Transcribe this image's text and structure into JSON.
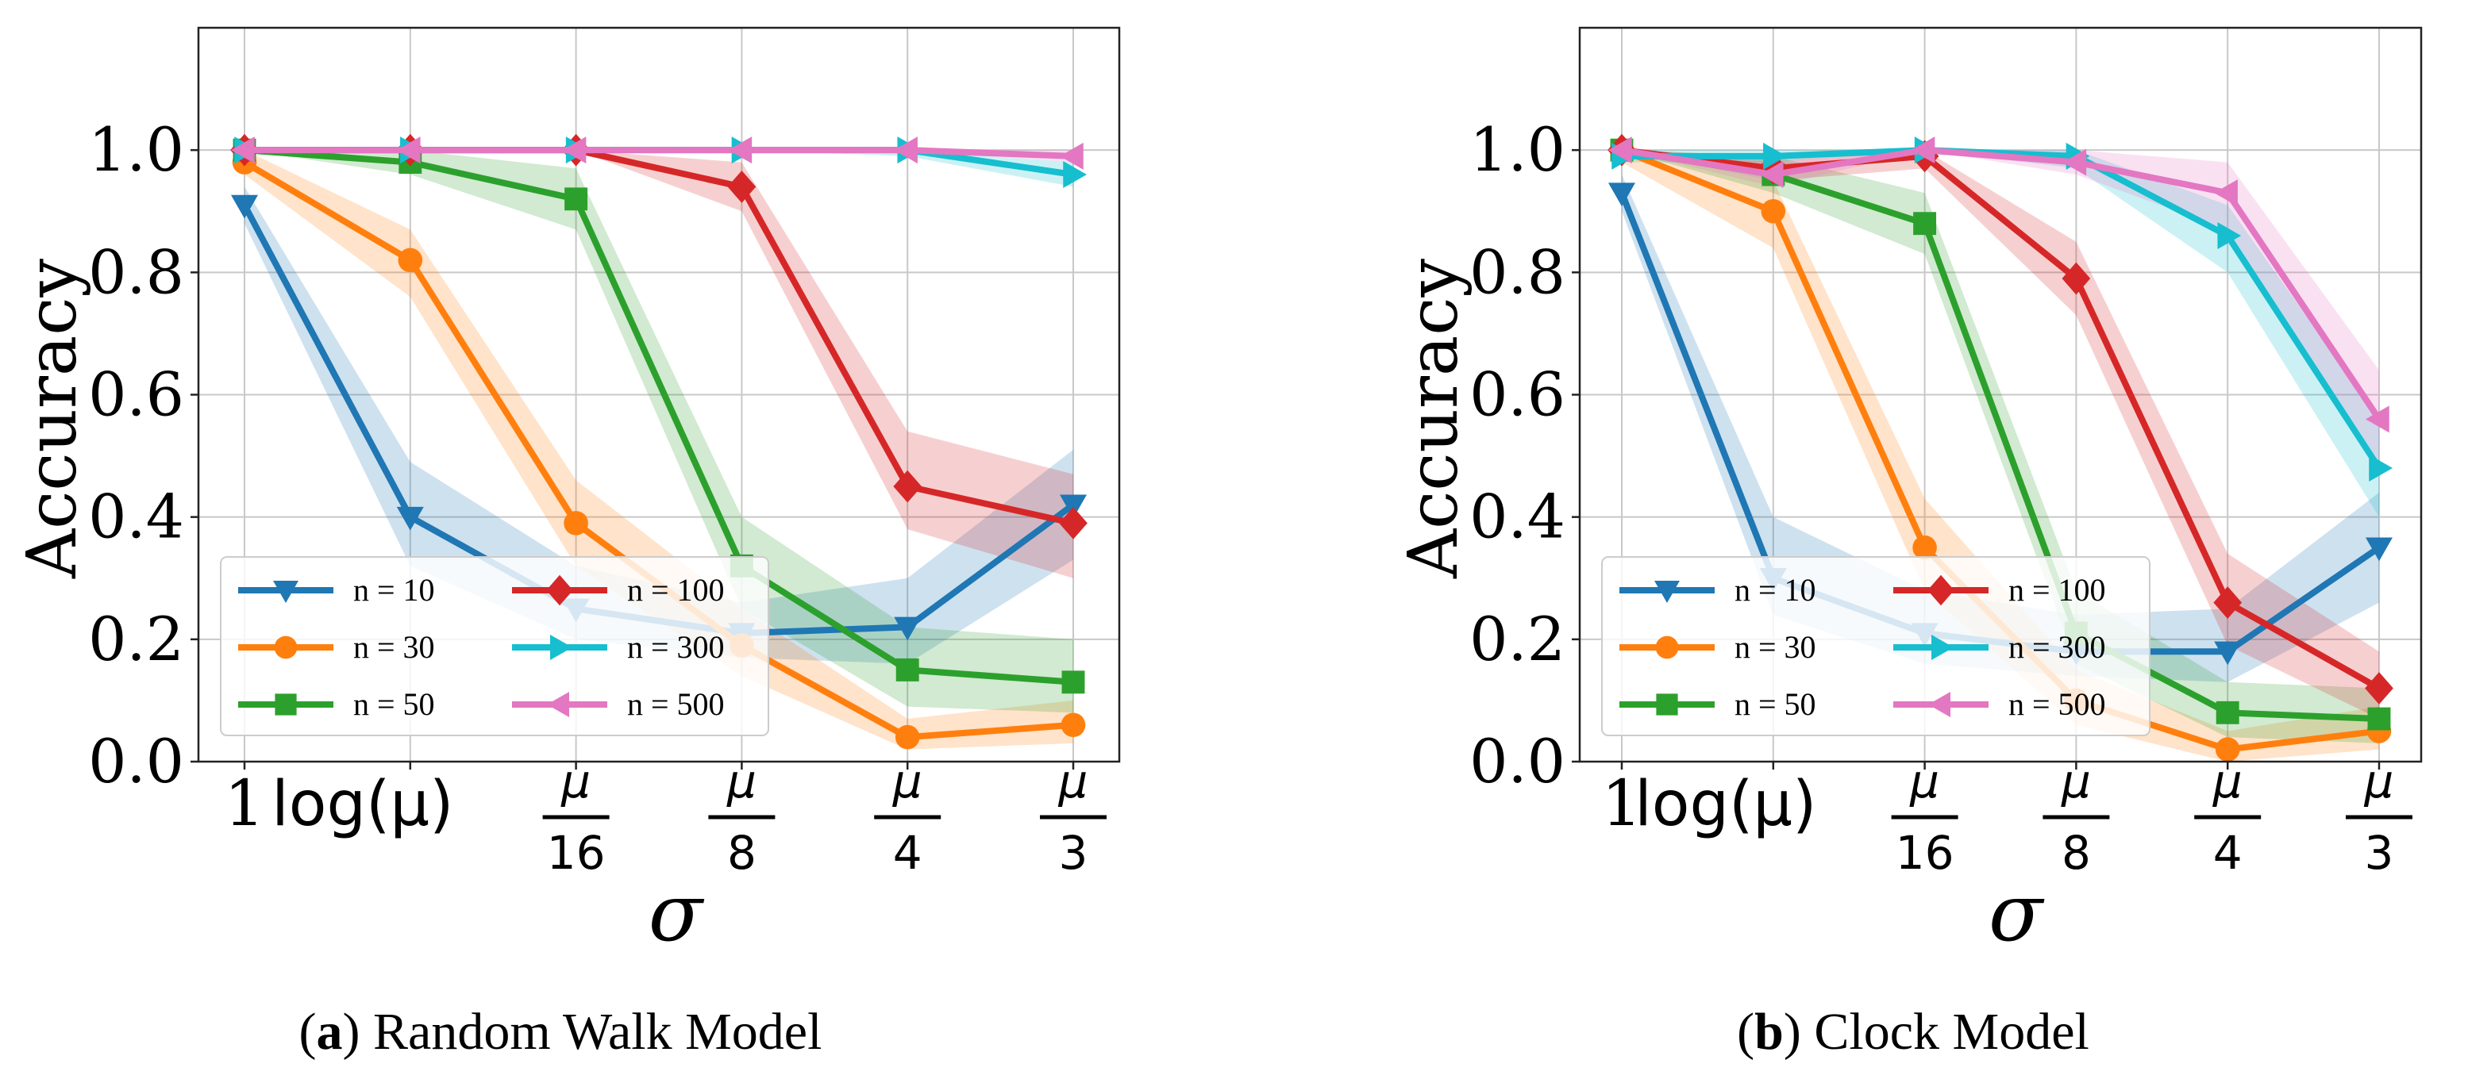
{
  "x_tick_labels": [
    {
      "type": "text",
      "text": "1"
    },
    {
      "type": "text",
      "text": "log(μ)"
    },
    {
      "type": "frac",
      "num": "μ",
      "den": "16"
    },
    {
      "type": "frac",
      "num": "μ",
      "den": "8"
    },
    {
      "type": "frac",
      "num": "μ",
      "den": "4"
    },
    {
      "type": "frac",
      "num": "μ",
      "den": "3"
    }
  ],
  "colors": {
    "n = 10": "#1f77b4",
    "n = 30": "#ff7f0e",
    "n = 50": "#2ca02c",
    "n = 100": "#d62728",
    "n = 300": "#17becf",
    "n = 500": "#e377c2"
  },
  "markers": {
    "n = 10": "triangle-down",
    "n = 30": "circle",
    "n = 50": "square",
    "n = 100": "diamond",
    "n = 300": "triangle-right",
    "n = 500": "triangle-left"
  },
  "chart_data": [
    {
      "type": "line",
      "caption_prefix": "(",
      "caption_letter": "a",
      "caption_suffix": ") ",
      "caption_text": "Random Walk Model",
      "xlabel": "σ",
      "ylabel": "Accuracy",
      "ylim": [
        0.0,
        1.2
      ],
      "yticks": [
        0.0,
        0.2,
        0.4,
        0.6,
        0.8,
        1.0
      ],
      "ytick_labels": [
        "0.0",
        "0.2",
        "0.4",
        "0.6",
        "0.8",
        "1.0"
      ],
      "grid": true,
      "legend_position": "bottom-left",
      "series": [
        {
          "name": "n = 10",
          "values": [
            0.91,
            0.4,
            0.25,
            0.21,
            0.22,
            0.42
          ],
          "lower": [
            0.88,
            0.32,
            0.2,
            0.17,
            0.16,
            0.33
          ],
          "upper": [
            0.94,
            0.49,
            0.32,
            0.26,
            0.3,
            0.51
          ]
        },
        {
          "name": "n = 30",
          "values": [
            0.98,
            0.82,
            0.39,
            0.19,
            0.04,
            0.06
          ],
          "lower": [
            0.96,
            0.76,
            0.32,
            0.14,
            0.02,
            0.03
          ],
          "upper": [
            1.0,
            0.87,
            0.46,
            0.25,
            0.07,
            0.1
          ]
        },
        {
          "name": "n = 50",
          "values": [
            1.0,
            0.98,
            0.92,
            0.32,
            0.15,
            0.13
          ],
          "lower": [
            1.0,
            0.96,
            0.87,
            0.25,
            0.09,
            0.08
          ],
          "upper": [
            1.0,
            1.0,
            0.97,
            0.4,
            0.22,
            0.2
          ]
        },
        {
          "name": "n = 100",
          "values": [
            1.0,
            1.0,
            1.0,
            0.94,
            0.45,
            0.39
          ],
          "lower": [
            1.0,
            1.0,
            1.0,
            0.9,
            0.38,
            0.3
          ],
          "upper": [
            1.0,
            1.0,
            1.0,
            0.98,
            0.54,
            0.47
          ]
        },
        {
          "name": "n = 300",
          "values": [
            1.0,
            1.0,
            1.0,
            1.0,
            1.0,
            0.96
          ],
          "lower": [
            1.0,
            1.0,
            1.0,
            1.0,
            0.99,
            0.94
          ],
          "upper": [
            1.0,
            1.0,
            1.0,
            1.0,
            1.0,
            0.98
          ]
        },
        {
          "name": "n = 500",
          "values": [
            1.0,
            1.0,
            1.0,
            1.0,
            1.0,
            0.99
          ],
          "lower": [
            1.0,
            1.0,
            1.0,
            1.0,
            1.0,
            0.98
          ],
          "upper": [
            1.0,
            1.0,
            1.0,
            1.0,
            1.0,
            1.0
          ]
        }
      ]
    },
    {
      "type": "line",
      "caption_prefix": "(",
      "caption_letter": "b",
      "caption_suffix": ") ",
      "caption_text": "Clock Model",
      "xlabel": "σ",
      "ylabel": "Accuracy",
      "ylim": [
        0.0,
        1.2
      ],
      "yticks": [
        0.0,
        0.2,
        0.4,
        0.6,
        0.8,
        1.0
      ],
      "ytick_labels": [
        "0.0",
        "0.2",
        "0.4",
        "0.6",
        "0.8",
        "1.0"
      ],
      "grid": true,
      "legend_position": "bottom-left",
      "series": [
        {
          "name": "n = 10",
          "values": [
            0.93,
            0.3,
            0.21,
            0.18,
            0.18,
            0.35
          ],
          "lower": [
            0.9,
            0.24,
            0.16,
            0.14,
            0.13,
            0.26
          ],
          "upper": [
            0.96,
            0.4,
            0.28,
            0.24,
            0.25,
            0.44
          ]
        },
        {
          "name": "n = 30",
          "values": [
            1.0,
            0.9,
            0.35,
            0.1,
            0.02,
            0.05
          ],
          "lower": [
            0.98,
            0.84,
            0.28,
            0.06,
            0.0,
            0.02
          ],
          "upper": [
            1.0,
            0.95,
            0.43,
            0.15,
            0.05,
            0.09
          ]
        },
        {
          "name": "n = 50",
          "values": [
            1.0,
            0.96,
            0.88,
            0.21,
            0.08,
            0.07
          ],
          "lower": [
            1.0,
            0.93,
            0.83,
            0.16,
            0.04,
            0.03
          ],
          "upper": [
            1.0,
            0.99,
            0.93,
            0.28,
            0.13,
            0.12
          ]
        },
        {
          "name": "n = 100",
          "values": [
            1.0,
            0.97,
            0.99,
            0.79,
            0.26,
            0.12
          ],
          "lower": [
            1.0,
            0.95,
            0.97,
            0.73,
            0.19,
            0.07
          ],
          "upper": [
            1.0,
            0.99,
            1.0,
            0.85,
            0.34,
            0.18
          ]
        },
        {
          "name": "n = 300",
          "values": [
            0.99,
            0.99,
            1.0,
            0.99,
            0.86,
            0.48
          ],
          "lower": [
            0.98,
            0.98,
            1.0,
            0.97,
            0.8,
            0.4
          ],
          "upper": [
            1.0,
            1.0,
            1.0,
            1.0,
            0.91,
            0.56
          ]
        },
        {
          "name": "n = 500",
          "values": [
            1.0,
            0.96,
            1.0,
            0.98,
            0.93,
            0.56
          ],
          "lower": [
            1.0,
            0.94,
            1.0,
            0.96,
            0.87,
            0.49
          ],
          "upper": [
            1.0,
            0.98,
            1.0,
            1.0,
            0.98,
            0.64
          ]
        }
      ]
    }
  ]
}
